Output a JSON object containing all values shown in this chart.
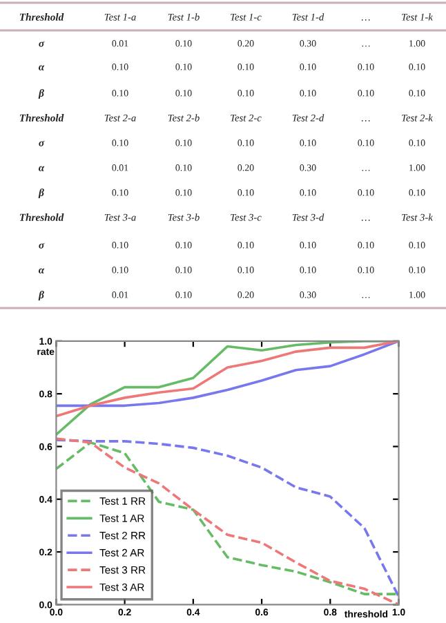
{
  "chart_data": [
    {
      "type": "other",
      "annotations": [
        "Threshold",
        "Test 1-a",
        "Test 1-b",
        "Test 1-c",
        "Test 1-d",
        "…",
        "Test 1-k",
        "σ",
        "0.01",
        "0.10",
        "0.20",
        "0.30",
        "…",
        "1.00",
        "α",
        "0.10",
        "0.10",
        "0.10",
        "0.10",
        "0.10",
        "0.10",
        "β",
        "0.10",
        "0.10",
        "0.10",
        "0.10",
        "0.10",
        "0.10",
        "Threshold",
        "Test 2-a",
        "Test 2-b",
        "Test 2-c",
        "Test 2-d",
        "…",
        "Test 2-k",
        "σ",
        "0.10",
        "0.10",
        "0.10",
        "0.10",
        "0.10",
        "0.10",
        "α",
        "0.01",
        "0.10",
        "0.20",
        "0.30",
        "…",
        "1.00",
        "β",
        "0.10",
        "0.10",
        "0.10",
        "0.10",
        "0.10",
        "0.10",
        "Threshold",
        "Test 3-a",
        "Test 3-b",
        "Test 3-c",
        "Test 3-d",
        "…",
        "Test 3-k",
        "σ",
        "0.10",
        "0.10",
        "0.10",
        "0.10",
        "0.10",
        "0.10",
        "α",
        "0.10",
        "0.10",
        "0.10",
        "0.10",
        "0.10",
        "0.10",
        "β",
        "0.01",
        "0.10",
        "0.20",
        "0.30",
        "…",
        "1.00"
      ]
    },
    {
      "type": "line",
      "xlabel": "threshold",
      "ylabel": "rate",
      "x": [
        0.0,
        0.1,
        0.2,
        0.3,
        0.4,
        0.5,
        0.6,
        0.7,
        0.8,
        0.9,
        1.0
      ],
      "xlim": [
        0,
        1
      ],
      "ylim": [
        0,
        1
      ],
      "xticks": [
        {
          "value": 0,
          "label": "0.0"
        },
        0.2,
        0.4,
        0.6,
        0.8,
        {
          "value": 1,
          "label": "1.0"
        }
      ],
      "yticks": [
        {
          "value": 0,
          "label": "0.0"
        },
        0.2,
        0.4,
        0.6,
        0.8,
        {
          "value": 1,
          "label": "1.0"
        }
      ],
      "legend": "bottom left",
      "grid": false,
      "series": [
        {
          "name": "Test 1 RR",
          "color": "#66bb66",
          "line_style": "dashed",
          "values": [
            0.515,
            0.615,
            0.575,
            0.39,
            0.36,
            0.18,
            0.15,
            0.125,
            0.085,
            0.04,
            0.04
          ]
        },
        {
          "name": "Test 1 AR",
          "color": "#66bb66",
          "line_style": "solid",
          "values": [
            0.645,
            0.76,
            0.825,
            0.825,
            0.86,
            0.98,
            0.965,
            0.985,
            0.995,
            1.0,
            1.0
          ]
        },
        {
          "name": "Test 2 RR",
          "color": "#7777ee",
          "line_style": "dashed",
          "values": [
            0.625,
            0.62,
            0.62,
            0.61,
            0.595,
            0.565,
            0.52,
            0.445,
            0.41,
            0.29,
            0.03
          ]
        },
        {
          "name": "Test 2 AR",
          "color": "#7777ee",
          "line_style": "solid",
          "values": [
            0.755,
            0.755,
            0.755,
            0.765,
            0.785,
            0.815,
            0.85,
            0.89,
            0.905,
            0.95,
            1.0
          ]
        },
        {
          "name": "Test 3 RR",
          "color": "#ee7777",
          "line_style": "dashed",
          "values": [
            0.63,
            0.615,
            0.52,
            0.46,
            0.36,
            0.265,
            0.235,
            0.16,
            0.09,
            0.06,
            0.0
          ]
        },
        {
          "name": "Test 3 AR",
          "color": "#ee7777",
          "line_style": "solid",
          "values": [
            0.715,
            0.755,
            0.785,
            0.805,
            0.82,
            0.9,
            0.925,
            0.96,
            0.975,
            0.975,
            1.0
          ]
        }
      ]
    }
  ]
}
